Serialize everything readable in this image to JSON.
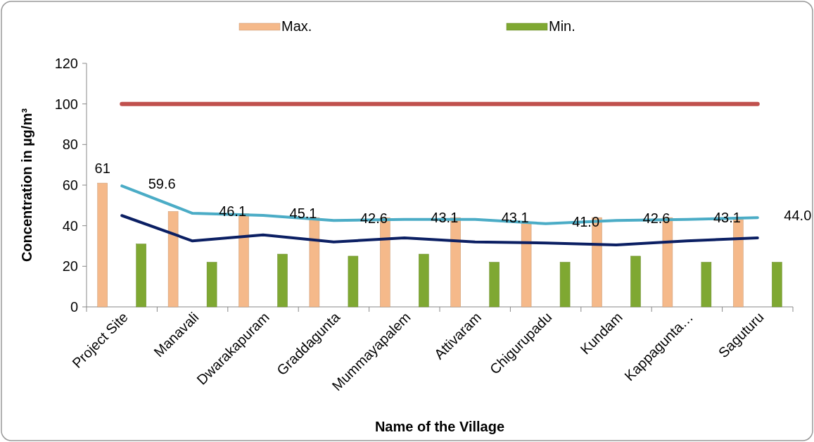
{
  "chart_data": {
    "type": "bar",
    "xlabel": "Name of the Village",
    "ylabel": "Concentration in µg/m³",
    "categories": [
      "Project Site",
      "Manavali",
      "Dwarakapuram",
      "Graddagunta",
      "Mummayapalem",
      "Attivaram",
      "Chigurupadu",
      "Kundam",
      "Kappagunta…",
      "Saguturu"
    ],
    "ylim": [
      0,
      120
    ],
    "yticks": [
      0,
      20,
      40,
      60,
      80,
      100,
      120
    ],
    "legend": "top",
    "series": [
      {
        "name": "Max.",
        "color": "#f5b98a",
        "values": [
          61,
          47,
          46,
          44,
          44,
          44,
          41,
          44,
          44,
          43
        ],
        "value_labels": [
          "61",
          null,
          null,
          null,
          null,
          null,
          null,
          null,
          null,
          null
        ]
      },
      {
        "name": "Min.",
        "color": "#7fa832",
        "values": [
          31,
          22,
          26,
          25,
          26,
          22,
          22,
          25,
          22,
          22
        ]
      },
      {
        "type": "line",
        "color": "#4bacc6",
        "values": [
          59.6,
          46.1,
          45.1,
          42.6,
          43.1,
          43.1,
          41.0,
          42.6,
          43.1,
          44.0
        ],
        "value_labels": [
          "59.6",
          "46.1",
          "45.1",
          "42.6",
          "43.1",
          "43.1",
          "41.0",
          "42.6",
          "43.1",
          "44.0"
        ]
      },
      {
        "type": "line",
        "color": "#0b1f63",
        "values": [
          45,
          32.5,
          35.5,
          32,
          34,
          32,
          31.5,
          30.5,
          32.5,
          34
        ]
      },
      {
        "type": "line",
        "color": "#c0504d",
        "values": [
          100,
          100,
          100,
          100,
          100,
          100,
          100,
          100,
          100,
          100
        ]
      }
    ]
  }
}
